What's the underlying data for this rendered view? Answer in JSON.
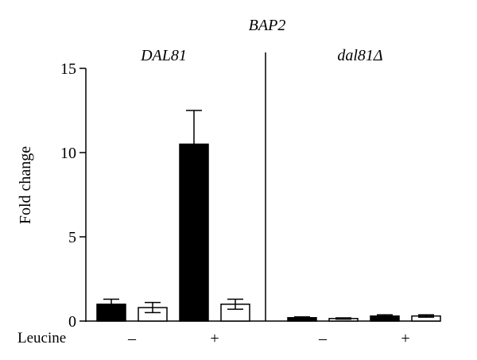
{
  "chart_data": {
    "type": "bar",
    "title": "BAP2",
    "ylabel": "Fold change",
    "xlabel": "Leucine",
    "ylim": [
      0,
      15
    ],
    "yticks": [
      "0",
      "5",
      "10",
      "15"
    ],
    "grid": false,
    "legend": "none",
    "bar_styles": [
      "filled",
      "open"
    ],
    "colors": {
      "filled": "#000000",
      "open": "#ffffff",
      "stroke": "#000000"
    },
    "panels": [
      {
        "label": "DAL81",
        "groups": [
          {
            "leucine": "–",
            "bars": [
              {
                "value": 1.0,
                "error": 0.3
              },
              {
                "value": 0.8,
                "error": 0.3
              }
            ]
          },
          {
            "leucine": "+",
            "bars": [
              {
                "value": 10.5,
                "error": 2.0
              },
              {
                "value": 1.0,
                "error": 0.3
              }
            ]
          }
        ]
      },
      {
        "label": "dal81Δ",
        "groups": [
          {
            "leucine": "–",
            "bars": [
              {
                "value": 0.2,
                "error": 0.05
              },
              {
                "value": 0.15,
                "error": 0.04
              }
            ]
          },
          {
            "leucine": "+",
            "bars": [
              {
                "value": 0.3,
                "error": 0.07
              },
              {
                "value": 0.3,
                "error": 0.07
              }
            ]
          }
        ]
      }
    ]
  }
}
